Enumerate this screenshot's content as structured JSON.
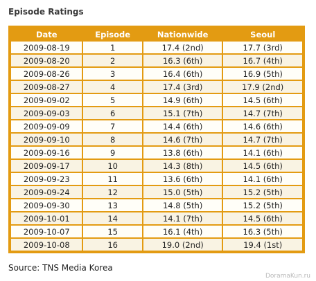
{
  "header": {
    "title": "Episode Ratings"
  },
  "table": {
    "columns": [
      "Date",
      "Episode",
      "Nationwide",
      "Seoul"
    ],
    "rows": [
      [
        "2009-08-19",
        1,
        "17.4 (2nd)",
        "17.7 (3rd)"
      ],
      [
        "2009-08-20",
        2,
        "16.3 (6th)",
        "16.7 (4th)"
      ],
      [
        "2009-08-26",
        3,
        "16.4 (6th)",
        "16.9 (5th)"
      ],
      [
        "2009-08-27",
        4,
        "17.4 (3rd)",
        "17.9 (2nd)"
      ],
      [
        "2009-09-02",
        5,
        "14.9 (6th)",
        "14.5 (6th)"
      ],
      [
        "2009-09-03",
        6,
        "15.1 (7th)",
        "14.7 (7th)"
      ],
      [
        "2009-09-09",
        7,
        "14.4 (6th)",
        "14.6 (6th)"
      ],
      [
        "2009-09-10",
        8,
        "14.6 (7th)",
        "14.7 (7th)"
      ],
      [
        "2009-09-16",
        9,
        "13.8 (6th)",
        "14.1 (6th)"
      ],
      [
        "2009-09-17",
        10,
        "14.3 (8th)",
        "14.5 (6th)"
      ],
      [
        "2009-09-23",
        11,
        "13.6 (6th)",
        "14.1 (6th)"
      ],
      [
        "2009-09-24",
        12,
        "15.0 (5th)",
        "15.2 (5th)"
      ],
      [
        "2009-09-30",
        13,
        "14.8 (5th)",
        "15.2 (5th)"
      ],
      [
        "2009-10-01",
        14,
        "14.1 (7th)",
        "14.5 (6th)"
      ],
      [
        "2009-10-07",
        15,
        "16.1 (4th)",
        "16.3 (5th)"
      ],
      [
        "2009-10-08",
        16,
        "19.0 (2nd)",
        "19.4 (1st)"
      ]
    ]
  },
  "source": "Source: TNS Media Korea",
  "watermark": "DoramaKun.ru"
}
